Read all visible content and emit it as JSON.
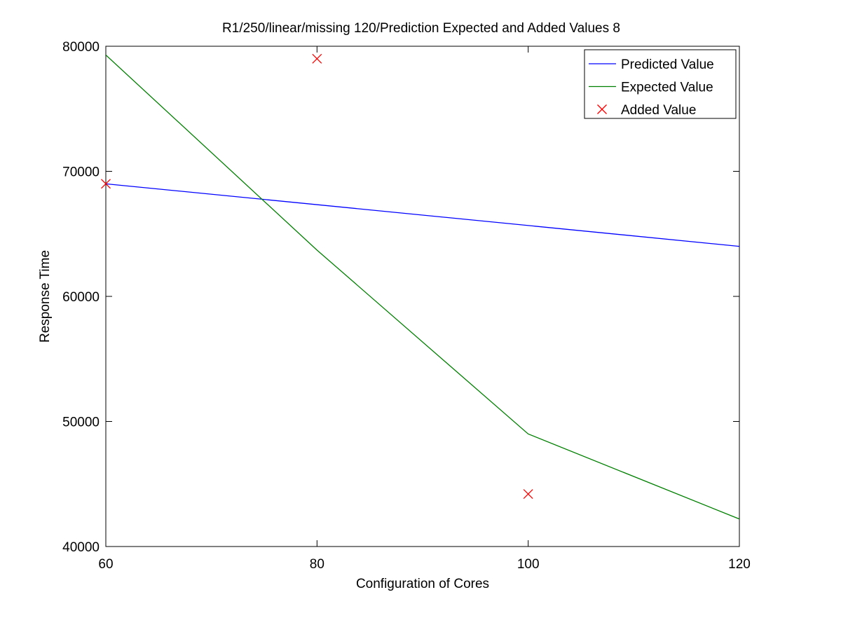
{
  "chart_data": {
    "type": "line",
    "title": "R1/250/linear/missing 120/Prediction Expected and Added Values 8",
    "xlabel": "Configuration of Cores",
    "ylabel": "Response Time",
    "xlim": [
      60,
      120
    ],
    "ylim": [
      40000,
      80000
    ],
    "xticks": [
      60,
      80,
      100,
      120
    ],
    "yticks": [
      40000,
      50000,
      60000,
      70000,
      80000
    ],
    "grid": false,
    "legend_position": "top-right",
    "series": [
      {
        "name": "Predicted Value",
        "type": "line",
        "color": "#0000ff",
        "x": [
          60,
          120
        ],
        "y": [
          69000,
          64000
        ]
      },
      {
        "name": "Expected Value",
        "type": "line",
        "color": "#008000",
        "x": [
          60,
          80,
          100,
          120
        ],
        "y": [
          79300,
          63700,
          49000,
          42200
        ]
      },
      {
        "name": "Added Value",
        "type": "scatter",
        "marker": "x",
        "color": "#ff0000",
        "x": [
          60,
          80,
          100
        ],
        "y": [
          69000,
          79000,
          44200
        ]
      }
    ]
  }
}
